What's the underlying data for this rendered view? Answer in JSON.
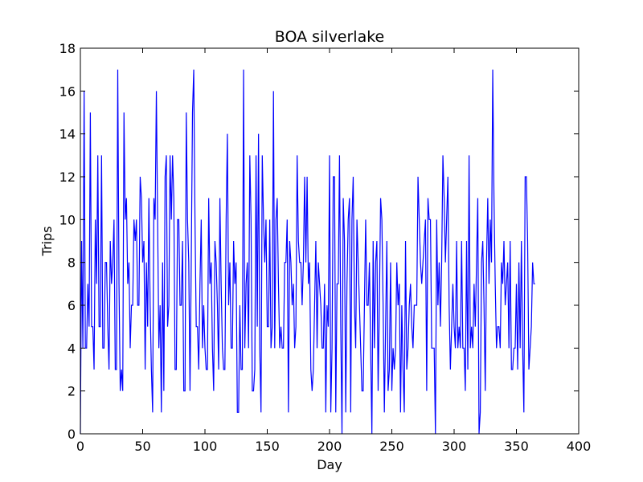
{
  "chart_data": {
    "type": "line",
    "title": "BOA silverlake",
    "xlabel": "Day",
    "ylabel": "Trips",
    "xlim": [
      0,
      400
    ],
    "ylim": [
      0,
      18
    ],
    "xticks": [
      0,
      50,
      100,
      150,
      200,
      250,
      300,
      350,
      400
    ],
    "yticks": [
      0,
      2,
      4,
      6,
      8,
      10,
      12,
      14,
      16,
      18
    ],
    "grid": false,
    "line_color": "#0000ff",
    "series": [
      {
        "x": [
          0,
          1,
          2,
          3,
          4,
          5,
          6,
          7,
          8,
          9,
          10,
          11,
          12,
          13,
          14,
          15,
          16,
          17,
          18,
          19,
          20,
          21,
          22,
          23,
          24,
          25,
          26,
          27,
          28,
          29,
          30,
          31,
          32,
          33,
          34,
          35,
          36,
          37,
          38,
          39,
          40,
          41,
          42,
          43,
          44,
          45,
          46,
          47,
          48,
          49,
          50,
          51,
          52,
          53,
          54,
          55,
          56,
          57,
          58,
          59,
          60,
          61,
          62,
          63,
          64,
          65,
          66,
          67,
          68,
          69,
          70,
          71,
          72,
          73,
          74,
          75,
          76,
          77,
          78,
          79,
          80,
          81,
          82,
          83,
          84,
          85,
          86,
          87,
          88,
          89,
          90,
          91,
          92,
          93,
          94,
          95,
          96,
          97,
          98,
          99,
          100,
          101,
          102,
          103,
          104,
          105,
          106,
          107,
          108,
          109,
          110,
          111,
          112,
          113,
          114,
          115,
          116,
          117,
          118,
          119,
          120,
          121,
          122,
          123,
          124,
          125,
          126,
          127,
          128,
          129,
          130,
          131,
          132,
          133,
          134,
          135,
          136,
          137,
          138,
          139,
          140,
          141,
          142,
          143,
          144,
          145,
          146,
          147,
          148,
          149,
          150,
          151,
          152,
          153,
          154,
          155,
          156,
          157,
          158,
          159,
          160,
          161,
          162,
          163,
          164,
          165,
          166,
          167,
          168,
          169,
          170,
          171,
          172,
          173,
          174,
          175,
          176,
          177,
          178,
          179,
          180,
          181,
          182,
          183,
          184,
          185,
          186,
          187,
          188,
          189,
          190,
          191,
          192,
          193,
          194,
          195,
          196,
          197,
          198,
          199,
          200,
          201,
          202,
          203,
          204,
          205,
          206,
          207,
          208,
          209,
          210,
          211,
          212,
          213,
          214,
          215,
          216,
          217,
          218,
          219,
          220,
          221,
          222,
          223,
          224,
          225,
          226,
          227,
          228,
          229,
          230,
          231,
          232,
          233,
          234,
          235,
          236,
          237,
          238,
          239,
          240,
          241,
          242,
          243,
          244,
          245,
          246,
          247,
          248,
          249,
          250,
          251,
          252,
          253,
          254,
          255,
          256,
          257,
          258,
          259,
          260,
          261,
          262,
          263,
          264,
          265,
          266,
          267,
          268,
          269,
          270,
          271,
          272,
          273,
          274,
          275,
          276,
          277,
          278,
          279,
          280,
          281,
          282,
          283,
          284,
          285,
          286,
          287,
          288,
          289,
          290,
          291,
          292,
          293,
          294,
          295,
          296,
          297,
          298,
          299,
          300,
          301,
          302,
          303,
          304,
          305,
          306,
          307,
          308,
          309,
          310,
          311,
          312,
          313,
          314,
          315,
          316,
          317,
          318,
          319,
          320,
          321,
          322,
          323,
          324,
          325,
          326,
          327,
          328,
          329,
          330,
          331,
          332,
          333,
          334,
          335,
          336,
          337,
          338,
          339,
          340,
          341,
          342,
          343,
          344,
          345,
          346,
          347,
          348,
          349,
          350,
          351,
          352,
          353,
          354,
          355,
          356,
          357,
          358,
          359,
          360,
          361,
          362,
          363,
          364,
          365
        ],
        "values": [
          0,
          9,
          4,
          16,
          4,
          4,
          7,
          5,
          15,
          5,
          5,
          3,
          10,
          7,
          13,
          5,
          5,
          13,
          4,
          4,
          8,
          8,
          5,
          3,
          9,
          7,
          8,
          10,
          3,
          3,
          17,
          7,
          2,
          3,
          2,
          15,
          10,
          11,
          7,
          8,
          4,
          6,
          6,
          10,
          9,
          10,
          6,
          6,
          12,
          11,
          8,
          9,
          3,
          8,
          5,
          11,
          6,
          3,
          1,
          11,
          10,
          16,
          10,
          4,
          6,
          1,
          8,
          2,
          12,
          13,
          5,
          6,
          13,
          10,
          13,
          11,
          3,
          3,
          10,
          10,
          6,
          6,
          9,
          2,
          2,
          15,
          10,
          8,
          2,
          8,
          15,
          17,
          10,
          5,
          5,
          3,
          7,
          10,
          4,
          6,
          4,
          3,
          3,
          11,
          7,
          8,
          4,
          2,
          9,
          8,
          6,
          3,
          11,
          7,
          4,
          3,
          3,
          10,
          14,
          6,
          8,
          4,
          4,
          9,
          7,
          8,
          1,
          1,
          6,
          3,
          3,
          17,
          4,
          7,
          8,
          4,
          13,
          10,
          2,
          2,
          3,
          13,
          5,
          14,
          4,
          1,
          13,
          10,
          8,
          10,
          5,
          5,
          10,
          4,
          5,
          16,
          4,
          10,
          11,
          7,
          4,
          5,
          4,
          4,
          8,
          8,
          10,
          1,
          9,
          8,
          6,
          7,
          4,
          5,
          13,
          9,
          8,
          8,
          6,
          8,
          12,
          8,
          12,
          7,
          8,
          3,
          2,
          3,
          6,
          9,
          4,
          8,
          7,
          6,
          4,
          4,
          7,
          1,
          6,
          5,
          13,
          1,
          4,
          12,
          12,
          1,
          7,
          7,
          13,
          5,
          0,
          11,
          9,
          1,
          7,
          10,
          11,
          1,
          10,
          12,
          6,
          4,
          10,
          8,
          6,
          4,
          2,
          2,
          6,
          10,
          6,
          6,
          8,
          4,
          0,
          9,
          4,
          8,
          9,
          2,
          6,
          11,
          10,
          6,
          1,
          5,
          9,
          2,
          3,
          8,
          2,
          4,
          3,
          4,
          8,
          6,
          7,
          1,
          6,
          3,
          1,
          9,
          3,
          4,
          6,
          7,
          5,
          4,
          6,
          6,
          6,
          12,
          10,
          8,
          7,
          8,
          9,
          10,
          2,
          11,
          10,
          10,
          4,
          4,
          4,
          0,
          10,
          6,
          8,
          5,
          8,
          13,
          11,
          8,
          10,
          12,
          6,
          3,
          5,
          7,
          5,
          4,
          9,
          4,
          5,
          4,
          9,
          4,
          4,
          2,
          9,
          3,
          13,
          4,
          5,
          4,
          7,
          5,
          8,
          11,
          0,
          1,
          8,
          9,
          6,
          2,
          8,
          11,
          7,
          10,
          8,
          17,
          11,
          7,
          4,
          5,
          5,
          4,
          8,
          7,
          9,
          6,
          7,
          8,
          4,
          9,
          3,
          3,
          4,
          4,
          7,
          3,
          8,
          4,
          9,
          4,
          1,
          12,
          12,
          9,
          3,
          4,
          5,
          8,
          7,
          7
        ]
      }
    ]
  }
}
